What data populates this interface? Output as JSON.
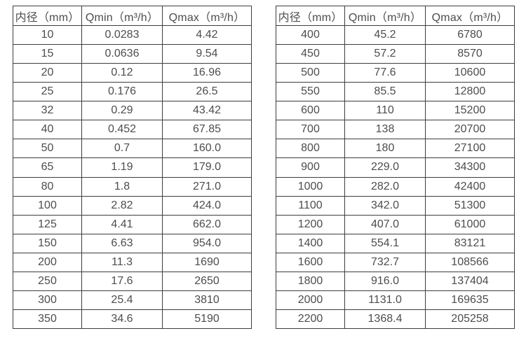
{
  "unit_note": "m³/h",
  "colors": {
    "background": "#ffffff",
    "border": "#3d3d3d",
    "text": "#4d4d4d"
  },
  "tables": [
    {
      "name": "flow-rate-table-dn10-350",
      "headers": [
        "内径（mm）",
        "Qmin（m³/h）",
        "Qmax（m³/h）"
      ],
      "rows": [
        [
          "10",
          "0.0283",
          "4.42"
        ],
        [
          "15",
          "0.0636",
          "9.54"
        ],
        [
          "20",
          "0.12",
          "16.96"
        ],
        [
          "25",
          "0.176",
          "26.5"
        ],
        [
          "32",
          "0.29",
          "43.42"
        ],
        [
          "40",
          "0.452",
          "67.85"
        ],
        [
          "50",
          "0.7",
          "160.0"
        ],
        [
          "65",
          "1.19",
          "179.0"
        ],
        [
          "80",
          "1.8",
          "271.0"
        ],
        [
          "100",
          "2.82",
          "424.0"
        ],
        [
          "125",
          "4.41",
          "662.0"
        ],
        [
          "150",
          "6.63",
          "954.0"
        ],
        [
          "200",
          "11.3",
          "1690"
        ],
        [
          "250",
          "17.6",
          "2650"
        ],
        [
          "300",
          "25.4",
          "3810"
        ],
        [
          "350",
          "34.6",
          "5190"
        ]
      ]
    },
    {
      "name": "flow-rate-table-dn400-2200",
      "headers": [
        "内径（mm）",
        "Qmin（m³/h）",
        "Qmax（m³/h）"
      ],
      "rows": [
        [
          "400",
          "45.2",
          "6780"
        ],
        [
          "450",
          "57.2",
          "8570"
        ],
        [
          "500",
          "77.6",
          "10600"
        ],
        [
          "550",
          "85.5",
          "12800"
        ],
        [
          "600",
          "110",
          "15200"
        ],
        [
          "700",
          "138",
          "20700"
        ],
        [
          "800",
          "180",
          "27100"
        ],
        [
          "900",
          "229.0",
          "34300"
        ],
        [
          "1000",
          "282.0",
          "42400"
        ],
        [
          "1100",
          "342.0",
          "51300"
        ],
        [
          "1200",
          "407.0",
          "61000"
        ],
        [
          "1400",
          "554.1",
          "83121"
        ],
        [
          "1600",
          "732.7",
          "108566"
        ],
        [
          "1800",
          "916.0",
          "137404"
        ],
        [
          "2000",
          "1131.0",
          "169635"
        ],
        [
          "2200",
          "1368.4",
          "205258"
        ]
      ]
    }
  ]
}
